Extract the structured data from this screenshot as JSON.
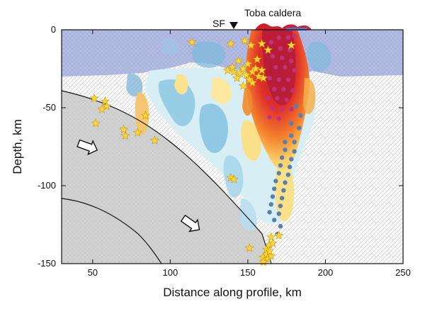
{
  "figure": {
    "title_annotation": "Toba caldera",
    "fault_label": "SF",
    "x_axis_label": "Distance along profile, km",
    "y_axis_label": "Depth, km"
  },
  "chart_data": {
    "type": "tomography-cross-section",
    "xlabel": "Distance along profile, km",
    "ylabel": "Depth, km",
    "xlim": [
      30,
      250
    ],
    "ylim": [
      -150,
      0
    ],
    "x_ticks": [
      50,
      100,
      150,
      200,
      250
    ],
    "y_ticks": [
      0,
      -50,
      -100,
      -150
    ],
    "x_tick_labels": [
      "50",
      "100",
      "150",
      "200",
      "250"
    ],
    "y_tick_labels": [
      "0",
      "-50",
      "-100",
      "-150"
    ],
    "annotations": [
      {
        "text": "Toba caldera",
        "x": 170,
        "y": 0
      },
      {
        "text": "SF",
        "x": 140,
        "y": 0
      }
    ],
    "earthquakes_stars": [
      {
        "x": 114,
        "y": -8
      },
      {
        "x": 139,
        "y": -9
      },
      {
        "x": 148,
        "y": -7
      },
      {
        "x": 152,
        "y": -10
      },
      {
        "x": 159,
        "y": -9
      },
      {
        "x": 163,
        "y": -13
      },
      {
        "x": 178,
        "y": -10
      },
      {
        "x": 144,
        "y": -20
      },
      {
        "x": 150,
        "y": -22
      },
      {
        "x": 156,
        "y": -19
      },
      {
        "x": 137,
        "y": -26
      },
      {
        "x": 141,
        "y": -27
      },
      {
        "x": 145,
        "y": -28
      },
      {
        "x": 149,
        "y": -29
      },
      {
        "x": 153,
        "y": -27
      },
      {
        "x": 157,
        "y": -30
      },
      {
        "x": 143,
        "y": -31
      },
      {
        "x": 151,
        "y": -32
      },
      {
        "x": 155,
        "y": -25
      },
      {
        "x": 147,
        "y": -25
      },
      {
        "x": 159,
        "y": -26
      },
      {
        "x": 153,
        "y": -34
      },
      {
        "x": 147,
        "y": -36
      },
      {
        "x": 160,
        "y": -31
      },
      {
        "x": 140,
        "y": -24
      },
      {
        "x": 51,
        "y": -44
      },
      {
        "x": 58,
        "y": -46
      },
      {
        "x": 59,
        "y": -49
      },
      {
        "x": 56,
        "y": -51
      },
      {
        "x": 52,
        "y": -60
      },
      {
        "x": 70,
        "y": -64
      },
      {
        "x": 71,
        "y": -68
      },
      {
        "x": 79,
        "y": -66
      },
      {
        "x": 84,
        "y": -55
      },
      {
        "x": 90,
        "y": -71
      },
      {
        "x": 139,
        "y": -95
      },
      {
        "x": 141,
        "y": -96
      },
      {
        "x": 151,
        "y": -140
      },
      {
        "x": 162,
        "y": -141
      },
      {
        "x": 164,
        "y": -138
      },
      {
        "x": 165,
        "y": -133
      },
      {
        "x": 166,
        "y": -137
      },
      {
        "x": 160,
        "y": -146
      },
      {
        "x": 162,
        "y": -144
      },
      {
        "x": 163,
        "y": -147
      },
      {
        "x": 165,
        "y": -145
      },
      {
        "x": 160,
        "y": -149
      },
      {
        "x": 170,
        "y": -132
      },
      {
        "x": 164,
        "y": -142
      }
    ],
    "velocity_dots_red": [
      {
        "x": 170,
        "y": -5
      },
      {
        "x": 176,
        "y": -5
      },
      {
        "x": 180,
        "y": -4
      },
      {
        "x": 165,
        "y": -8
      },
      {
        "x": 171,
        "y": -12
      },
      {
        "x": 177,
        "y": -13
      },
      {
        "x": 166,
        "y": -17
      },
      {
        "x": 172,
        "y": -18
      },
      {
        "x": 178,
        "y": -20
      },
      {
        "x": 168,
        "y": -24
      },
      {
        "x": 174,
        "y": -24
      },
      {
        "x": 180,
        "y": -26
      },
      {
        "x": 164,
        "y": -31
      },
      {
        "x": 170,
        "y": -32
      },
      {
        "x": 176,
        "y": -32
      },
      {
        "x": 167,
        "y": -38
      },
      {
        "x": 173,
        "y": -38
      },
      {
        "x": 179,
        "y": -39
      },
      {
        "x": 163,
        "y": -44
      },
      {
        "x": 169,
        "y": -44
      },
      {
        "x": 175,
        "y": -45
      },
      {
        "x": 166,
        "y": -50
      },
      {
        "x": 172,
        "y": -51
      },
      {
        "x": 178,
        "y": -51
      },
      {
        "x": 164,
        "y": -56
      },
      {
        "x": 170,
        "y": -57
      }
    ],
    "velocity_dots_blue": [
      {
        "x": 181,
        "y": -49
      },
      {
        "x": 184,
        "y": -55
      },
      {
        "x": 178,
        "y": -60
      },
      {
        "x": 183,
        "y": -63
      },
      {
        "x": 178,
        "y": -68
      },
      {
        "x": 174,
        "y": -72
      },
      {
        "x": 180,
        "y": -72
      },
      {
        "x": 174,
        "y": -77
      },
      {
        "x": 180,
        "y": -78
      },
      {
        "x": 172,
        "y": -82
      },
      {
        "x": 178,
        "y": -83
      },
      {
        "x": 171,
        "y": -87
      },
      {
        "x": 177,
        "y": -88
      },
      {
        "x": 170,
        "y": -92
      },
      {
        "x": 176,
        "y": -93
      },
      {
        "x": 168,
        "y": -97
      },
      {
        "x": 174,
        "y": -98
      },
      {
        "x": 167,
        "y": -102
      },
      {
        "x": 173,
        "y": -103
      },
      {
        "x": 166,
        "y": -107
      },
      {
        "x": 172,
        "y": -108
      },
      {
        "x": 165,
        "y": -112
      },
      {
        "x": 171,
        "y": -113
      },
      {
        "x": 164,
        "y": -117
      },
      {
        "x": 170,
        "y": -118
      },
      {
        "x": 167,
        "y": -122
      },
      {
        "x": 171,
        "y": -126
      },
      {
        "x": 169,
        "y": -131
      }
    ]
  },
  "colors": {
    "crust": "#a9b2dc",
    "slab": "#cfcfcf",
    "hatch": "#d9d9d9",
    "strong_red": "#d51e2b",
    "orange": "#f28a2e",
    "yellow": "#fde08a",
    "light_blue": "#bfe3ef",
    "mid_blue": "#7fc6e2",
    "star": "#ffd43c",
    "dot_red": "#c0327a",
    "dot_blue": "#5a7fa8"
  },
  "icons": {
    "arrow": "arrow-icon",
    "triangle": "triangle-marker-icon",
    "star": "star-icon"
  }
}
